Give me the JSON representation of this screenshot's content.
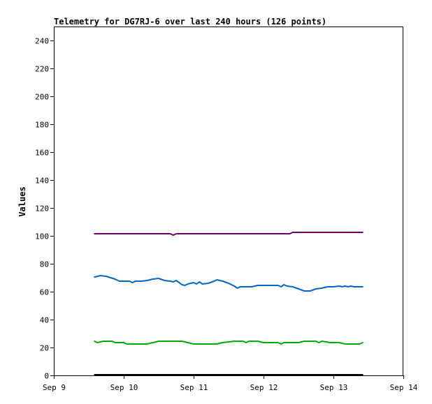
{
  "chart_data": {
    "type": "line",
    "title": "Telemetry for DG7RJ-6 over last 240 hours (126 points)",
    "xlabel": "",
    "ylabel": "Values",
    "xlim": [
      "2023-09-09",
      "2023-09-14"
    ],
    "ylim": [
      0,
      250
    ],
    "x_ticks": [
      {
        "date": "2023-09-09",
        "label": "Sep 9"
      },
      {
        "date": "2023-09-10",
        "label": "Sep 10"
      },
      {
        "date": "2023-09-11",
        "label": "Sep 11"
      },
      {
        "date": "2023-09-12",
        "label": "Sep 12"
      },
      {
        "date": "2023-09-13",
        "label": "Sep 13"
      },
      {
        "date": "2023-09-14",
        "label": "Sep 14"
      }
    ],
    "y_ticks": [
      0,
      20,
      40,
      60,
      80,
      100,
      120,
      140,
      160,
      180,
      200,
      220,
      240
    ],
    "grid": false,
    "series": [
      {
        "color": "#660066",
        "points": [
          [
            "2023-09-09T14:00",
            101.5
          ],
          [
            "2023-09-10T04:00",
            101.5
          ],
          [
            "2023-09-10T12:00",
            101.5
          ],
          [
            "2023-09-10T16:00",
            101.5
          ],
          [
            "2023-09-10T17:00",
            100.5
          ],
          [
            "2023-09-10T18:00",
            101.5
          ],
          [
            "2023-09-11T00:00",
            101.5
          ],
          [
            "2023-09-11T12:00",
            101.5
          ],
          [
            "2023-09-12T00:00",
            101.5
          ],
          [
            "2023-09-12T09:00",
            101.5
          ],
          [
            "2023-09-12T10:00",
            102.5
          ],
          [
            "2023-09-13T00:00",
            102.5
          ],
          [
            "2023-09-13T10:00",
            102.5
          ]
        ]
      },
      {
        "color": "#0066cc",
        "points": [
          [
            "2023-09-09T14:00",
            70.5
          ],
          [
            "2023-09-09T16:00",
            71.5
          ],
          [
            "2023-09-09T18:00",
            71
          ],
          [
            "2023-09-09T19:30",
            70
          ],
          [
            "2023-09-09T21:00",
            69
          ],
          [
            "2023-09-09T22:30",
            67.5
          ],
          [
            "2023-09-10T00:00",
            67.5
          ],
          [
            "2023-09-10T02:00",
            67.5
          ],
          [
            "2023-09-10T03:00",
            66.5
          ],
          [
            "2023-09-10T04:00",
            67.5
          ],
          [
            "2023-09-10T06:00",
            67.5
          ],
          [
            "2023-09-10T08:00",
            68
          ],
          [
            "2023-09-10T10:00",
            69
          ],
          [
            "2023-09-10T12:00",
            69.5
          ],
          [
            "2023-09-10T14:00",
            68
          ],
          [
            "2023-09-10T16:00",
            67.5
          ],
          [
            "2023-09-10T17:00",
            67
          ],
          [
            "2023-09-10T18:00",
            68
          ],
          [
            "2023-09-10T19:00",
            66.5
          ],
          [
            "2023-09-10T20:00",
            65
          ],
          [
            "2023-09-10T21:00",
            64.5
          ],
          [
            "2023-09-10T22:00",
            65.5
          ],
          [
            "2023-09-11T00:00",
            66.5
          ],
          [
            "2023-09-11T01:00",
            65.5
          ],
          [
            "2023-09-11T02:00",
            67
          ],
          [
            "2023-09-11T03:00",
            65.5
          ],
          [
            "2023-09-11T05:00",
            66
          ],
          [
            "2023-09-11T07:00",
            67.5
          ],
          [
            "2023-09-11T08:00",
            68.5
          ],
          [
            "2023-09-11T10:00",
            67.5
          ],
          [
            "2023-09-11T12:00",
            66
          ],
          [
            "2023-09-11T14:00",
            64
          ],
          [
            "2023-09-11T15:00",
            62.5
          ],
          [
            "2023-09-11T16:00",
            63.5
          ],
          [
            "2023-09-11T18:00",
            63.5
          ],
          [
            "2023-09-11T20:00",
            63.5
          ],
          [
            "2023-09-11T22:00",
            64.5
          ],
          [
            "2023-09-12T00:00",
            64.5
          ],
          [
            "2023-09-12T02:00",
            64.5
          ],
          [
            "2023-09-12T05:00",
            64.5
          ],
          [
            "2023-09-12T06:00",
            63.5
          ],
          [
            "2023-09-12T07:00",
            65
          ],
          [
            "2023-09-12T08:00",
            64
          ],
          [
            "2023-09-12T10:00",
            63.5
          ],
          [
            "2023-09-12T12:00",
            62
          ],
          [
            "2023-09-12T14:00",
            60.5
          ],
          [
            "2023-09-12T16:00",
            60.5
          ],
          [
            "2023-09-12T18:00",
            62
          ],
          [
            "2023-09-12T20:00",
            62.5
          ],
          [
            "2023-09-12T22:00",
            63.5
          ],
          [
            "2023-09-13T00:00",
            63.5
          ],
          [
            "2023-09-13T02:00",
            64
          ],
          [
            "2023-09-13T03:00",
            63.5
          ],
          [
            "2023-09-13T04:00",
            64
          ],
          [
            "2023-09-13T05:00",
            63.5
          ],
          [
            "2023-09-13T06:00",
            64
          ],
          [
            "2023-09-13T07:00",
            63.5
          ],
          [
            "2023-09-13T08:00",
            63.5
          ],
          [
            "2023-09-13T09:00",
            63.5
          ],
          [
            "2023-09-13T10:00",
            63.5
          ]
        ]
      },
      {
        "color": "#00aa00",
        "points": [
          [
            "2023-09-09T14:00",
            24.5
          ],
          [
            "2023-09-09T15:00",
            23.5
          ],
          [
            "2023-09-09T17:00",
            24.5
          ],
          [
            "2023-09-09T20:00",
            24.5
          ],
          [
            "2023-09-09T21:00",
            23.5
          ],
          [
            "2023-09-10T00:00",
            23.5
          ],
          [
            "2023-09-10T01:00",
            22.5
          ],
          [
            "2023-09-10T04:00",
            22.5
          ],
          [
            "2023-09-10T08:00",
            22.5
          ],
          [
            "2023-09-10T10:00",
            23.5
          ],
          [
            "2023-09-10T12:00",
            24.5
          ],
          [
            "2023-09-10T15:00",
            24.5
          ],
          [
            "2023-09-10T20:00",
            24.5
          ],
          [
            "2023-09-10T22:00",
            23.5
          ],
          [
            "2023-09-11T00:00",
            22.5
          ],
          [
            "2023-09-11T04:00",
            22.5
          ],
          [
            "2023-09-11T08:00",
            22.5
          ],
          [
            "2023-09-11T10:00",
            23.5
          ],
          [
            "2023-09-11T14:00",
            24.5
          ],
          [
            "2023-09-11T17:00",
            24.5
          ],
          [
            "2023-09-11T18:00",
            23.5
          ],
          [
            "2023-09-11T19:00",
            24.5
          ],
          [
            "2023-09-11T22:00",
            24.5
          ],
          [
            "2023-09-12T00:00",
            23.5
          ],
          [
            "2023-09-12T05:00",
            23.5
          ],
          [
            "2023-09-12T06:00",
            22.5
          ],
          [
            "2023-09-12T07:00",
            23.5
          ],
          [
            "2023-09-12T12:00",
            23.5
          ],
          [
            "2023-09-12T14:00",
            24.5
          ],
          [
            "2023-09-12T18:00",
            24.5
          ],
          [
            "2023-09-12T19:00",
            23.5
          ],
          [
            "2023-09-12T20:00",
            24.5
          ],
          [
            "2023-09-12T23:00",
            23.5
          ],
          [
            "2023-09-13T02:00",
            23.5
          ],
          [
            "2023-09-13T04:00",
            22.5
          ],
          [
            "2023-09-13T09:00",
            22.5
          ],
          [
            "2023-09-13T10:00",
            23.5
          ]
        ]
      },
      {
        "color": "#000000",
        "points": [
          [
            "2023-09-09T14:00",
            0.5
          ],
          [
            "2023-09-13T10:00",
            0.5
          ]
        ]
      }
    ]
  }
}
